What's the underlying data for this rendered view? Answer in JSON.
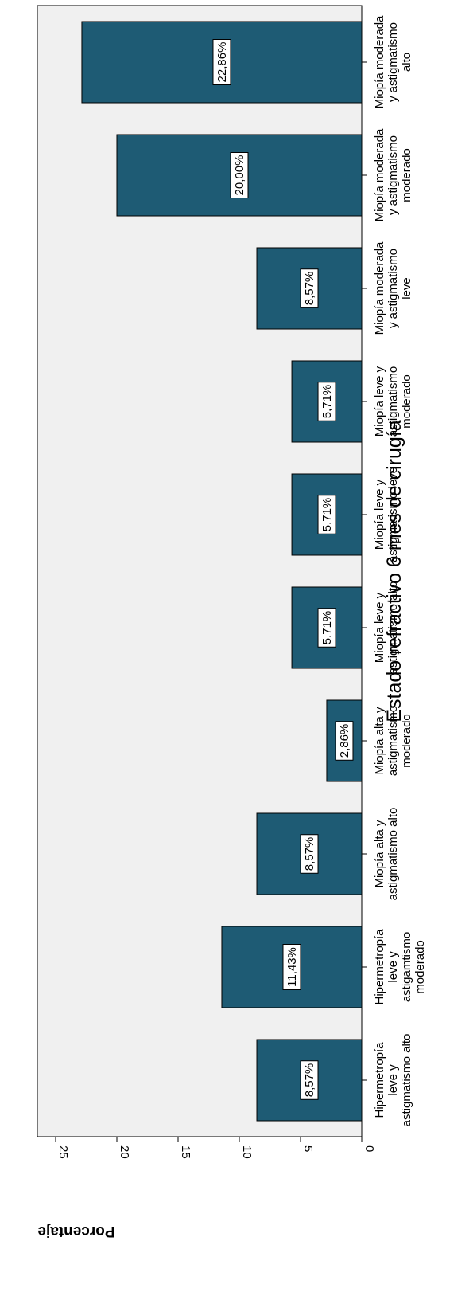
{
  "chart_data": {
    "type": "bar",
    "title": "Estado refractivo 6 mes de cirugía",
    "ylabel": "Porcentaje",
    "xlabel": "",
    "ylim": [
      0,
      25
    ],
    "yticks": [
      "0",
      "5",
      "10",
      "15",
      "20",
      "25"
    ],
    "categories": [
      [
        "Hipermetropía",
        "leve y",
        "astigmatismo alto"
      ],
      [
        "Hipermetropía",
        "leve y",
        "astigamtismo",
        "moderado"
      ],
      [
        "Miopía alta y",
        "astigmatismo alto"
      ],
      [
        "Miopía alta y",
        "astigmatismo",
        "moderado"
      ],
      [
        "Miopía leve y",
        "astigmatismo alto"
      ],
      [
        "Miopía leve y",
        "astigmatismo leve"
      ],
      [
        "Miopía leve y",
        "astigmatismo",
        "moderado"
      ],
      [
        "Miopía moderada",
        "y astigmatismo",
        "leve"
      ],
      [
        "Miopía moderada",
        "y astigmatismo",
        "moderado"
      ],
      [
        "Miopía moderada",
        "y astigmatismo",
        "alto"
      ]
    ],
    "values": [
      8.57,
      11.43,
      8.57,
      2.86,
      5.71,
      5.71,
      5.71,
      8.57,
      20.0,
      22.86
    ],
    "data_labels": [
      "8,57%",
      "11,43%",
      "8,57%",
      "2,86%",
      "5,71%",
      "5,71%",
      "5,71%",
      "8,57%",
      "20,00%",
      "22,86%"
    ],
    "grid": false,
    "orientation": "rotated 90° clockwise",
    "colors": {
      "bar": "#1e5b74",
      "plot_background": "#f0f0f0",
      "label_box": "#ffffff"
    }
  }
}
